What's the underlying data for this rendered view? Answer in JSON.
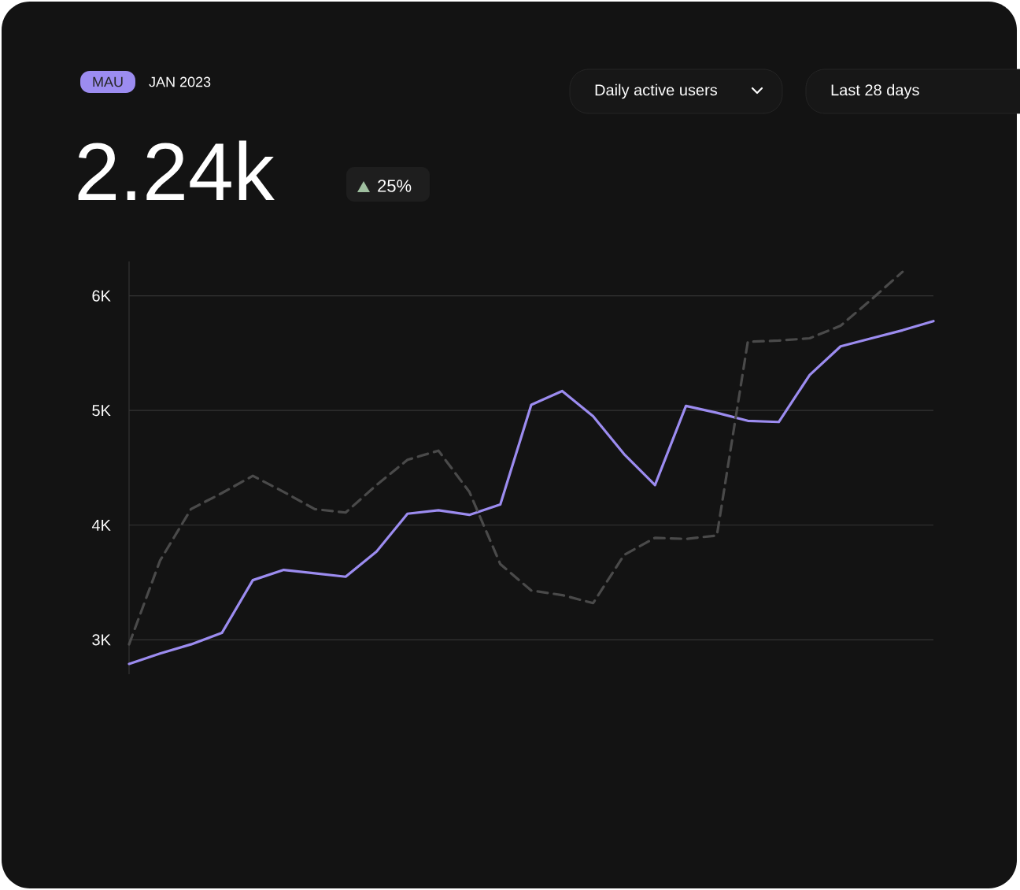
{
  "chart_data": {
    "type": "line",
    "annotations": [
      "MAU",
      "JAN 2023",
      "2.24k",
      "25%",
      "Daily active users",
      "Last 28 days"
    ],
    "categories": [
      null,
      null,
      null,
      null,
      null,
      null,
      null,
      null,
      null,
      null,
      null,
      null,
      null,
      null,
      null,
      null,
      null,
      null,
      null,
      null,
      null,
      null,
      null,
      null,
      null,
      null,
      null
    ],
    "series": [
      {
        "color": "#9c8cf0",
        "line_style": "solid",
        "values": [
          2790,
          2880,
          2960,
          3060,
          3520,
          3610,
          3580,
          3550,
          3770,
          4100,
          4130,
          4090,
          4180,
          5050,
          5170,
          4950,
          4620,
          4350,
          5040,
          4980,
          4910,
          4900,
          5310,
          5560,
          5630,
          5700,
          5780
        ]
      },
      {
        "color": "#4a4a4a",
        "line_style": "dashed",
        "values": [
          2960,
          3690,
          4140,
          4280,
          4430,
          4290,
          4140,
          4110,
          4350,
          4570,
          4650,
          4290,
          3660,
          3430,
          3390,
          3320,
          3740,
          3890,
          3880,
          3910,
          5600,
          5610,
          5630,
          5740,
          5970,
          6210,
          null
        ]
      }
    ],
    "ylim": [
      2700,
      6300
    ],
    "yticks": [
      {
        "value": 3000,
        "label": "3K"
      },
      {
        "value": 4000,
        "label": "4K"
      },
      {
        "value": 5000,
        "label": "5K"
      },
      {
        "value": 6000,
        "label": "6K"
      }
    ],
    "grid": "y",
    "tick_labels": "y"
  }
}
